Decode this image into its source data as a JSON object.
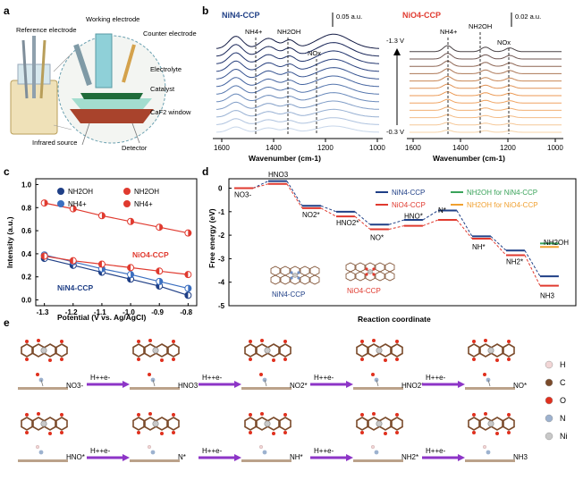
{
  "panel_labels": [
    "a",
    "b",
    "c",
    "d",
    "e"
  ],
  "panel_a": {
    "labels": {
      "reference": "Reference electrode",
      "working": "Working electrode",
      "counter": "Counter electrode",
      "electrolyte": "Electrolyte",
      "catalyst": "Catalyst",
      "window": "CaF2 window",
      "infrared": "Infrared source",
      "detector": "Detector"
    }
  },
  "panel_b": {
    "left_title": "NiN4-CCP",
    "right_title": "NiO4-CCP",
    "left_scale": "0.05 a.u.",
    "right_scale": "0.02 a.u.",
    "peak_labels": [
      "NH4+",
      "NH2OH",
      "NOx"
    ],
    "potential_top": "-1.3 V",
    "potential_bottom": "-0.3 V",
    "xlabel": "Wavenumber (cm-1)",
    "ticks": [
      "1600",
      "1400",
      "1200",
      "1000"
    ],
    "left_colors": [
      "#c7d6ea",
      "#afc3df",
      "#97b0d3",
      "#809dc7",
      "#6a8abb",
      "#5677ae",
      "#4464a0",
      "#355290",
      "#2a4280",
      "#21346d",
      "#1a2759",
      "#141c45"
    ],
    "right_colors": [
      "#f7d4a9",
      "#f6c898",
      "#f4bc86",
      "#f2b074",
      "#f0a462",
      "#ec9a55",
      "#e19356",
      "#c98756",
      "#ad7756",
      "#8e6654",
      "#6e5551",
      "#4a4346"
    ]
  },
  "chart_data": [
    {
      "type": "line",
      "panel": "c",
      "title": "",
      "xlabel": "Potential (V vs. Ag/AgCl)",
      "ylabel": "Intensity (a.u.)",
      "x": [
        -1.3,
        -1.2,
        -1.1,
        -1.0,
        -0.9,
        -0.8
      ],
      "xticks": [
        "-1.3",
        "-1.2",
        "-1.1",
        "-1.0",
        "-0.9",
        "-0.8"
      ],
      "yticks": [
        "0.0",
        "0.2",
        "0.4",
        "0.6",
        "0.8",
        "1.0"
      ],
      "xlim": [
        -1.33,
        -0.77
      ],
      "ylim": [
        -0.05,
        1.05
      ],
      "series": [
        {
          "name": "NH2OH",
          "catalyst": "NiN4-CCP",
          "color": "#1f3f86",
          "marker": "left",
          "values": [
            0.36,
            0.3,
            0.24,
            0.18,
            0.12,
            0.04
          ]
        },
        {
          "name": "NH4+",
          "catalyst": "NiN4-CCP",
          "color": "#3b6fc0",
          "marker": "right",
          "values": [
            0.39,
            0.33,
            0.27,
            0.22,
            0.16,
            0.1
          ]
        },
        {
          "name": "NH2OH",
          "catalyst": "NiO4-CCP",
          "color": "#e03a2f",
          "marker": "left",
          "values": [
            0.38,
            0.34,
            0.31,
            0.28,
            0.25,
            0.22
          ]
        },
        {
          "name": "NH4+",
          "catalyst": "NiO4-CCP",
          "color": "#e03a2f",
          "marker": "right",
          "values": [
            0.84,
            0.79,
            0.73,
            0.68,
            0.63,
            0.58
          ]
        }
      ],
      "annotations": [
        "NiO4-CCP",
        "NiN4-CCP"
      ]
    },
    {
      "type": "line",
      "panel": "d",
      "title": "",
      "xlabel": "Reaction coordinate",
      "ylabel": "Free energy (eV)",
      "yticks": [
        "0",
        "-1",
        "-2",
        "-3",
        "-4",
        "-5"
      ],
      "ylim": [
        -5,
        0.4
      ],
      "steps": [
        "NO3-",
        "HNO3",
        "NO2*",
        "HNO2*",
        "NO*",
        "HNO*",
        "N*",
        "NH*",
        "NH2*",
        "NH3"
      ],
      "series": [
        {
          "name": "NiN4-CCP",
          "color": "#1f3f86",
          "values": [
            0.0,
            0.3,
            -0.75,
            -1.0,
            -1.55,
            -1.35,
            -0.95,
            -2.05,
            -2.65,
            -3.75
          ]
        },
        {
          "name": "NiO4-CCP",
          "color": "#e03a2f",
          "values": [
            0.0,
            0.18,
            -0.85,
            -1.2,
            -1.75,
            -1.6,
            -1.35,
            -2.15,
            -2.85,
            -4.15
          ]
        }
      ],
      "extra_levels": [
        {
          "name": "NH2OH for NiN4-CCP",
          "color": "#3aa35a",
          "value": -2.35
        },
        {
          "name": "NH2OH for NiO4-CCP",
          "color": "#f0a030",
          "value": -2.5
        }
      ],
      "nh2oh_label": "NH2OH",
      "structure_labels": [
        "NiN4-CCP",
        "NiO4-CCP"
      ]
    }
  ],
  "panel_e": {
    "row1": [
      "NO3-",
      "HNO3",
      "NO2*",
      "HNO2*",
      "NO*"
    ],
    "row2": [
      "HNO*",
      "N*",
      "NH*",
      "NH2*",
      "NH3"
    ],
    "arrow_label": "H++e-",
    "legend": [
      {
        "el": "H",
        "color": "#f2d6d6"
      },
      {
        "el": "C",
        "color": "#7a4a2a"
      },
      {
        "el": "O",
        "color": "#e0301e"
      },
      {
        "el": "N",
        "color": "#9db2cf"
      },
      {
        "el": "Ni",
        "color": "#c8c8c8"
      }
    ]
  }
}
